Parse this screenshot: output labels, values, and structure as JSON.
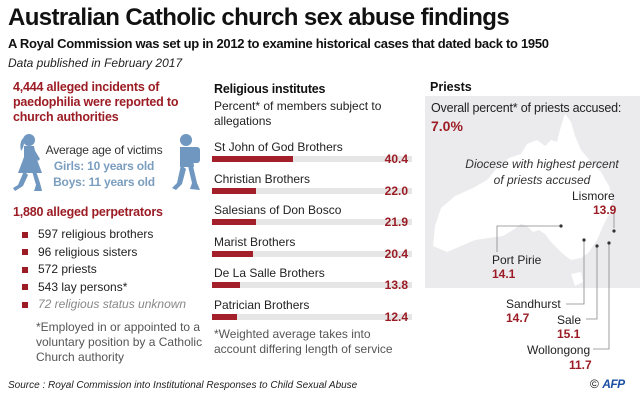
{
  "header": {
    "title": "Australian Catholic church sex abuse findings",
    "subtitle": "A Royal Commission was set up in 2012 to examine historical cases that dated back to 1950",
    "dated": "Data published in February 2017"
  },
  "victims": {
    "incidents_text": "4,444 alleged incidents of paedophilia were reported to church authorities",
    "avg_label": "Average age of victims",
    "girls": "Girls: 10 years old",
    "boys": "Boys: 11 years old",
    "colors": {
      "accent": "#9b1c24",
      "figure": "#6f97c0"
    }
  },
  "perpetrators": {
    "title": "1,880 alleged perpetrators",
    "items": [
      {
        "label": "597 religious brothers"
      },
      {
        "label": "96 religious sisters"
      },
      {
        "label": "572 priests"
      },
      {
        "label": "543 lay persons*"
      },
      {
        "label": "72 religious status unknown"
      }
    ],
    "note": "*Employed in or appointed to a voluntary position by a Catholic Church authority"
  },
  "chart_data": [
    {
      "type": "bar",
      "title": "Religious institutes",
      "subtitle": "Percent* of members subject to allegations",
      "categories": [
        "St John of God Brothers",
        "Christian Brothers",
        "Salesians of Don Bosco",
        "Marist Brothers",
        "De La Salle Brothers",
        "Patrician Brothers"
      ],
      "values": [
        40.4,
        22.0,
        21.9,
        20.4,
        13.8,
        12.4
      ],
      "value_labels": [
        "40.4",
        "22.0",
        "21.9",
        "20.4",
        "13.8",
        "12.4"
      ],
      "xlim": [
        0,
        100
      ],
      "orientation": "horizontal",
      "bar_color": "#a3202a",
      "track_color": "#e6e6e6",
      "note": "*Weighted average takes into account differing length of service"
    },
    {
      "type": "table",
      "title": "Priests",
      "overall_label": "Overall percent* of priests accused:",
      "overall_value": "7.0%",
      "map_note": "Diocese with highest percent of priests accused",
      "dioceses": [
        {
          "name": "Lismore",
          "value": 13.9,
          "label": "13.9"
        },
        {
          "name": "Port Pirie",
          "value": 14.1,
          "label": "14.1"
        },
        {
          "name": "Sandhurst",
          "value": 14.7,
          "label": "14.7"
        },
        {
          "name": "Sale",
          "value": 15.1,
          "label": "15.1"
        },
        {
          "name": "Wollongong",
          "value": 11.7,
          "label": "11.7"
        }
      ]
    }
  ],
  "footer": {
    "source": "Source : Royal Commission into Institutional Responses to Child Sexual Abuse",
    "copyright": "©",
    "logo": "AFP"
  }
}
